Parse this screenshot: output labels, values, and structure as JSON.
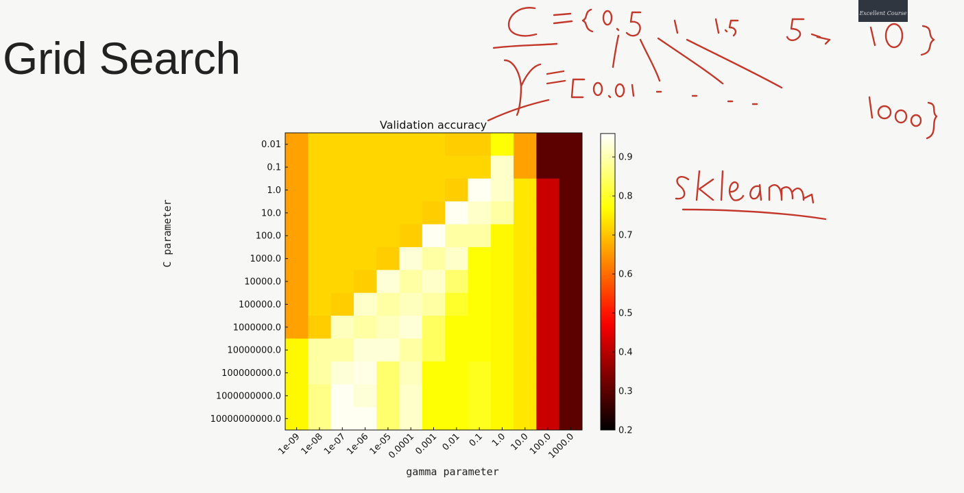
{
  "slide": {
    "title": "Grid Search",
    "logo_caption": "Excellent Course"
  },
  "chart_data": {
    "type": "heatmap",
    "title": "Validation accuracy",
    "xlabel": "gamma parameter",
    "ylabel": "C parameter",
    "x": [
      "1e-09",
      "1e-08",
      "1e-07",
      "1e-06",
      "1e-05",
      "0.0001",
      "0.001",
      "0.01",
      "0.1",
      "1.0",
      "10.0",
      "100.0",
      "1000.0"
    ],
    "y": [
      "0.01",
      "0.1",
      "1.0",
      "10.0",
      "100.0",
      "1000.0",
      "10000.0",
      "100000.0",
      "1000000.0",
      "10000000.0",
      "100000000.0",
      "1000000000.0",
      "10000000000.0"
    ],
    "values": [
      [
        0.66,
        0.72,
        0.72,
        0.72,
        0.72,
        0.72,
        0.72,
        0.71,
        0.71,
        0.77,
        0.66,
        0.3,
        0.3
      ],
      [
        0.66,
        0.72,
        0.72,
        0.72,
        0.72,
        0.72,
        0.72,
        0.72,
        0.72,
        0.92,
        0.66,
        0.3,
        0.3
      ],
      [
        0.66,
        0.72,
        0.72,
        0.72,
        0.72,
        0.72,
        0.72,
        0.71,
        0.95,
        0.92,
        0.74,
        0.42,
        0.3
      ],
      [
        0.66,
        0.72,
        0.72,
        0.72,
        0.72,
        0.72,
        0.71,
        0.95,
        0.92,
        0.89,
        0.74,
        0.42,
        0.3
      ],
      [
        0.66,
        0.72,
        0.72,
        0.72,
        0.72,
        0.71,
        0.95,
        0.89,
        0.89,
        0.76,
        0.74,
        0.42,
        0.3
      ],
      [
        0.66,
        0.72,
        0.72,
        0.72,
        0.71,
        0.93,
        0.89,
        0.92,
        0.77,
        0.76,
        0.74,
        0.42,
        0.3
      ],
      [
        0.66,
        0.72,
        0.72,
        0.71,
        0.93,
        0.89,
        0.92,
        0.85,
        0.77,
        0.76,
        0.74,
        0.42,
        0.3
      ],
      [
        0.66,
        0.72,
        0.71,
        0.92,
        0.89,
        0.91,
        0.89,
        0.8,
        0.77,
        0.76,
        0.74,
        0.42,
        0.3
      ],
      [
        0.66,
        0.71,
        0.91,
        0.89,
        0.91,
        0.93,
        0.84,
        0.77,
        0.77,
        0.76,
        0.74,
        0.42,
        0.3
      ],
      [
        0.76,
        0.89,
        0.89,
        0.93,
        0.93,
        0.89,
        0.84,
        0.77,
        0.77,
        0.76,
        0.74,
        0.42,
        0.3
      ],
      [
        0.76,
        0.89,
        0.93,
        0.94,
        0.85,
        0.91,
        0.77,
        0.77,
        0.79,
        0.76,
        0.74,
        0.42,
        0.3
      ],
      [
        0.76,
        0.87,
        0.95,
        0.93,
        0.85,
        0.92,
        0.77,
        0.77,
        0.79,
        0.76,
        0.74,
        0.42,
        0.3
      ],
      [
        0.76,
        0.87,
        0.95,
        0.95,
        0.85,
        0.92,
        0.77,
        0.77,
        0.79,
        0.76,
        0.74,
        0.42,
        0.3
      ]
    ],
    "vmin": 0.2,
    "vmax": 0.96,
    "colormap": "hot",
    "colorbar_ticks": [
      0.2,
      0.3,
      0.4,
      0.5,
      0.6,
      0.7,
      0.8,
      0.9
    ],
    "colorbar_labels": [
      "0.2",
      "0.3",
      "0.4",
      "0.5",
      "0.6",
      "0.7",
      "0.8",
      "0.9"
    ],
    "grid": false
  },
  "annotations": {
    "ink_color": "#c3382a",
    "handwritten": [
      "C = {0.5 1 1.5 5 -> 10}",
      "γ = [0.01 - - - - 1000}",
      "sklearn"
    ]
  }
}
